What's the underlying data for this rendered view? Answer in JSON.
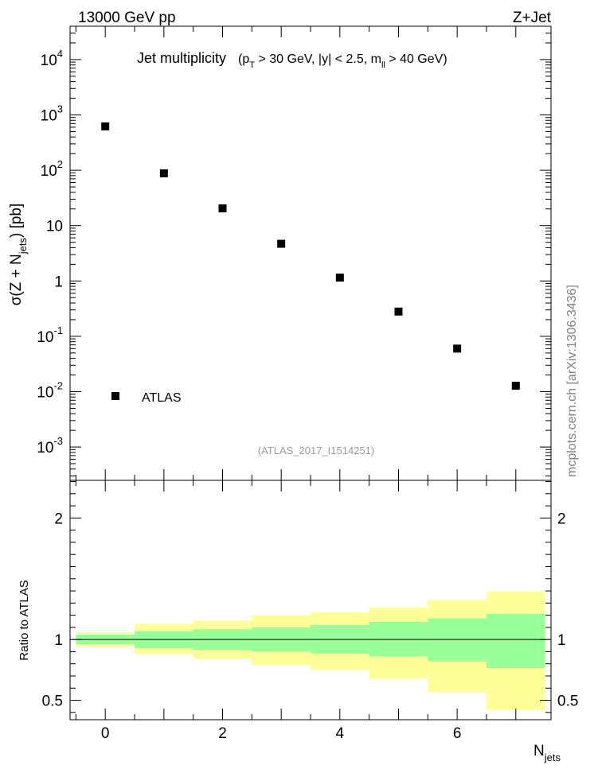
{
  "header": {
    "left_label": "13000 GeV pp",
    "right_label": "Z+Jet"
  },
  "watermark": "mcplots.cern.ch [arXiv:1306.3436]",
  "analysis_id": "(ATLAS_2017_I1514251)",
  "chart_data": [
    {
      "type": "scatter",
      "panel": "main",
      "title": "Jet multiplicity",
      "title_cuts": [
        "(p",
        "T",
        " > 30 GeV, |y| < 2.5, m",
        "ll",
        " > 40 GeV)"
      ],
      "ylabel_parts": [
        "σ(Z + N",
        "jets",
        ") [pb]"
      ],
      "yscale": "log",
      "ylim": [
        0.00025,
        40000
      ],
      "xlim": [
        -0.6,
        7.6
      ],
      "yticks_major": [
        0.001,
        0.01,
        0.1,
        1,
        10,
        100,
        1000,
        10000
      ],
      "ytick_labels": [
        {
          "base": "10",
          "exp": "-3"
        },
        {
          "base": "10",
          "exp": "-2"
        },
        {
          "base": "10",
          "exp": "-1"
        },
        {
          "base": "1",
          "exp": ""
        },
        {
          "base": "10",
          "exp": ""
        },
        {
          "base": "10",
          "exp": "2"
        },
        {
          "base": "10",
          "exp": "3"
        },
        {
          "base": "10",
          "exp": "4"
        }
      ],
      "legend": {
        "label": "ATLAS",
        "placement": "bottom-left"
      },
      "series": [
        {
          "name": "ATLAS",
          "marker": "square",
          "color": "#000000",
          "x": [
            0,
            1,
            2,
            3,
            4,
            5,
            6,
            7
          ],
          "y": [
            620,
            88,
            20.5,
            4.7,
            1.15,
            0.28,
            0.06,
            0.0128
          ]
        }
      ]
    },
    {
      "type": "area",
      "panel": "ratio",
      "ylabel": "Ratio to ATLAS",
      "ylim": [
        0.34,
        2.31
      ],
      "xlim": [
        -0.6,
        7.6
      ],
      "yticks": [
        0.5,
        1,
        2
      ],
      "ytick_labels": [
        "0.5",
        "1",
        "2"
      ],
      "xticks": [
        0,
        2,
        4,
        6
      ],
      "xtick_labels": [
        "0",
        "2",
        "4",
        "6"
      ],
      "xlabel_parts": [
        "N",
        "jets"
      ],
      "reference_line": 1,
      "band_colors": {
        "stat": "#99ff99",
        "total": "#ffff99"
      },
      "bins": [
        {
          "lo": -0.5,
          "hi": 0.5,
          "stat": [
            0.96,
            1.04
          ],
          "total": [
            0.94,
            1.06
          ]
        },
        {
          "lo": 0.5,
          "hi": 1.5,
          "stat": [
            0.93,
            1.07
          ],
          "total": [
            0.88,
            1.13
          ]
        },
        {
          "lo": 1.5,
          "hi": 2.5,
          "stat": [
            0.915,
            1.085
          ],
          "total": [
            0.84,
            1.155
          ]
        },
        {
          "lo": 2.5,
          "hi": 3.5,
          "stat": [
            0.9,
            1.1
          ],
          "total": [
            0.79,
            1.2
          ]
        },
        {
          "lo": 3.5,
          "hi": 4.5,
          "stat": [
            0.885,
            1.12
          ],
          "total": [
            0.75,
            1.225
          ]
        },
        {
          "lo": 4.5,
          "hi": 5.5,
          "stat": [
            0.86,
            1.145
          ],
          "total": [
            0.68,
            1.265
          ]
        },
        {
          "lo": 5.5,
          "hi": 6.5,
          "stat": [
            0.82,
            1.175
          ],
          "total": [
            0.565,
            1.325
          ]
        },
        {
          "lo": 6.5,
          "hi": 7.5,
          "stat": [
            0.765,
            1.21
          ],
          "total": [
            0.42,
            1.395
          ]
        }
      ]
    }
  ]
}
